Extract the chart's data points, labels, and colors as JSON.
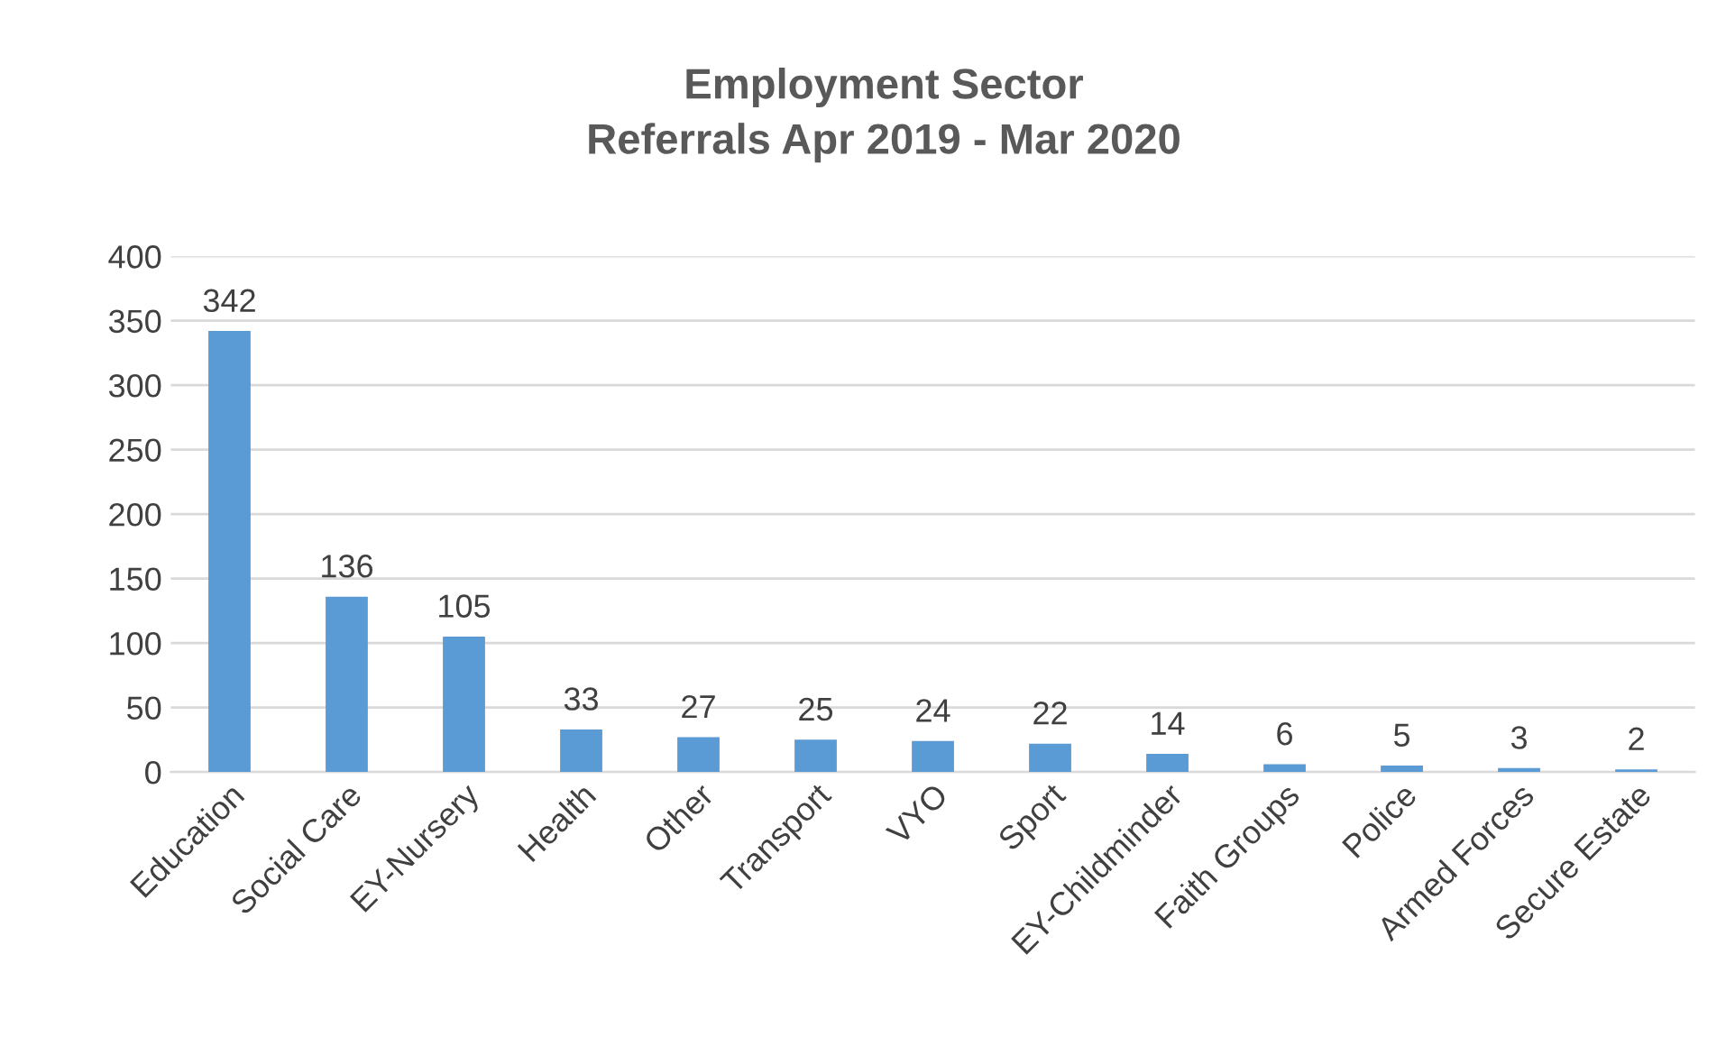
{
  "chart_data": {
    "type": "bar",
    "title": "Employment Sector\nReferrals Apr 2019 - Mar 2020",
    "categories": [
      "Education",
      "Social Care",
      "EY-Nursery",
      "Health",
      "Other",
      "Transport",
      "VYO",
      "Sport",
      "EY-Childminder",
      "Faith Groups",
      "Police",
      "Armed Forces",
      "Secure Estate"
    ],
    "values": [
      342,
      136,
      105,
      33,
      27,
      25,
      24,
      22,
      14,
      6,
      5,
      3,
      2
    ],
    "color": "#5b9bd5",
    "ylim": [
      0,
      400
    ],
    "yticks": [
      0,
      50,
      100,
      150,
      200,
      250,
      300,
      350,
      400
    ],
    "grid": "y",
    "data_labels": true
  }
}
